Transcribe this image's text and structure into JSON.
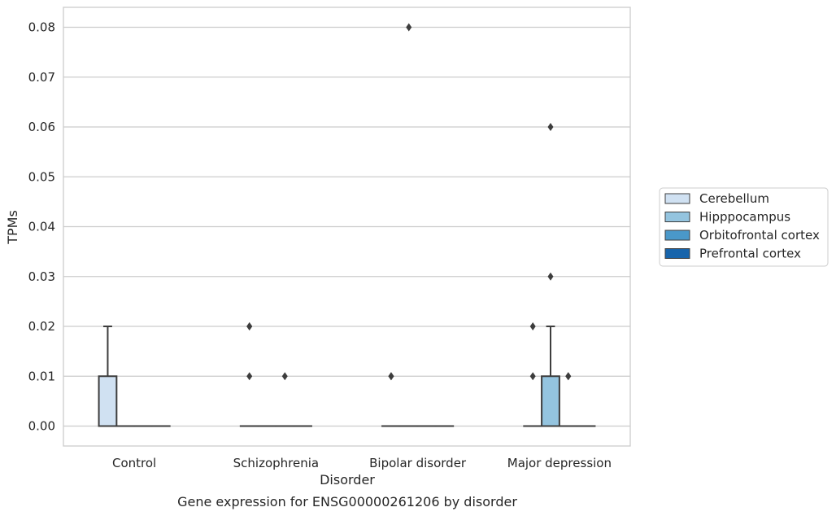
{
  "chart_data": {
    "type": "box",
    "title": "",
    "caption": "Gene expression for ENSG00000261206 by disorder",
    "xlabel": "Disorder",
    "ylabel": "TPMs",
    "ylim": [
      -0.004,
      0.084
    ],
    "yticks": [
      0.0,
      0.01,
      0.02,
      0.03,
      0.04,
      0.05,
      0.06,
      0.07,
      0.08
    ],
    "ytick_labels": [
      "0.00",
      "0.01",
      "0.02",
      "0.03",
      "0.04",
      "0.05",
      "0.06",
      "0.07",
      "0.08"
    ],
    "categories": [
      "Control",
      "Schizophrenia",
      "Bipolar disorder",
      "Major depression"
    ],
    "grid": "horizontal",
    "legend_position": "right",
    "series": [
      {
        "name": "Cerebellum",
        "color": "#d0e1f2",
        "boxes": [
          {
            "q1": 0,
            "median": 0,
            "q3": 0.01,
            "whisker_low": 0,
            "whisker_high": 0.02,
            "outliers": []
          },
          {
            "q1": 0,
            "median": 0,
            "q3": 0,
            "whisker_low": 0,
            "whisker_high": 0,
            "outliers": [
              0.01,
              0.02,
              0.02
            ]
          },
          {
            "q1": 0,
            "median": 0,
            "q3": 0,
            "whisker_low": 0,
            "whisker_high": 0,
            "outliers": [
              0.01,
              0.01
            ]
          },
          {
            "q1": 0,
            "median": 0,
            "q3": 0,
            "whisker_low": 0,
            "whisker_high": 0,
            "outliers": [
              0.01,
              0.02
            ]
          }
        ]
      },
      {
        "name": "Hipppocampus",
        "color": "#94c4df",
        "boxes": [
          {
            "q1": 0,
            "median": 0,
            "q3": 0,
            "whisker_low": 0,
            "whisker_high": 0,
            "outliers": []
          },
          {
            "q1": 0,
            "median": 0,
            "q3": 0,
            "whisker_low": 0,
            "whisker_high": 0,
            "outliers": []
          },
          {
            "q1": 0,
            "median": 0,
            "q3": 0,
            "whisker_low": 0,
            "whisker_high": 0,
            "outliers": [
              0.08
            ]
          },
          {
            "q1": 0,
            "median": 0,
            "q3": 0.01,
            "whisker_low": 0,
            "whisker_high": 0.02,
            "outliers": [
              0.03,
              0.06
            ]
          }
        ]
      },
      {
        "name": "Orbitofrontal cortex",
        "color": "#4a98c9",
        "boxes": [
          {
            "q1": 0,
            "median": 0,
            "q3": 0,
            "whisker_low": 0,
            "whisker_high": 0,
            "outliers": []
          },
          {
            "q1": 0,
            "median": 0,
            "q3": 0,
            "whisker_low": 0,
            "whisker_high": 0,
            "outliers": [
              0.01
            ]
          },
          {
            "q1": 0,
            "median": 0,
            "q3": 0,
            "whisker_low": 0,
            "whisker_high": 0,
            "outliers": []
          },
          {
            "q1": 0,
            "median": 0,
            "q3": 0,
            "whisker_low": 0,
            "whisker_high": 0,
            "outliers": [
              0.01,
              0.01
            ]
          }
        ]
      },
      {
        "name": "Prefrontal cortex",
        "color": "#1764ab",
        "boxes": [
          {
            "q1": 0,
            "median": 0,
            "q3": 0,
            "whisker_low": 0,
            "whisker_high": 0,
            "outliers": []
          },
          {
            "q1": 0,
            "median": 0,
            "q3": 0,
            "whisker_low": 0,
            "whisker_high": 0,
            "outliers": []
          },
          {
            "q1": 0,
            "median": 0,
            "q3": 0,
            "whisker_low": 0,
            "whisker_high": 0,
            "outliers": []
          },
          {
            "q1": 0,
            "median": 0,
            "q3": 0,
            "whisker_low": 0,
            "whisker_high": 0,
            "outliers": []
          }
        ]
      }
    ]
  }
}
